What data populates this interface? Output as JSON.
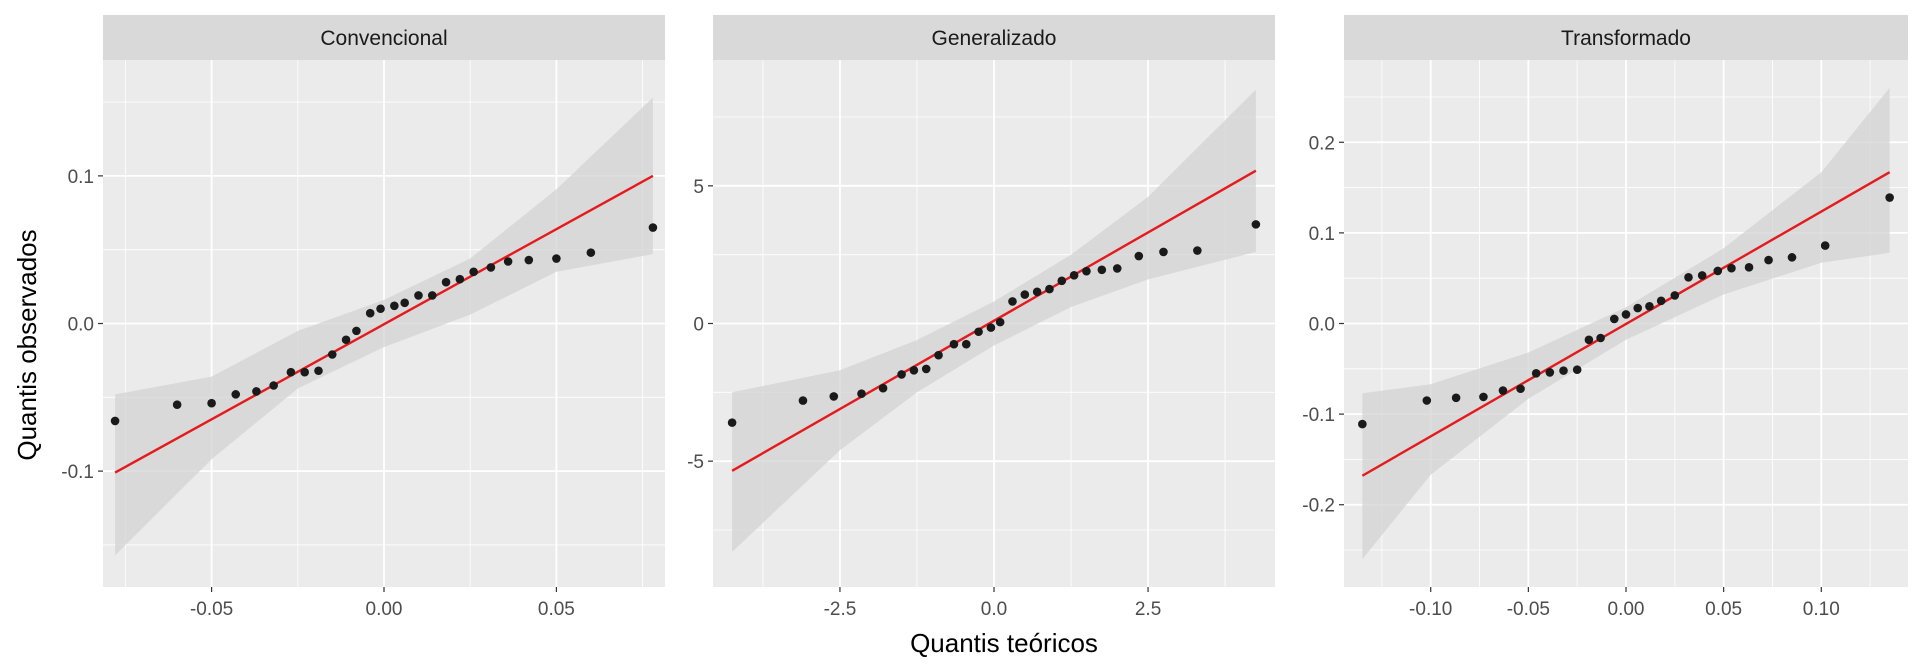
{
  "figure": {
    "xlabel": "Quantis teóricos",
    "ylabel": "Quantis observados"
  },
  "colors": {
    "panel_background": "#ebebeb",
    "strip_background": "#d9d9d9",
    "grid": "#ffffff",
    "band": "#d3d3d3",
    "line": "#e41a1c",
    "points": "#1a1a1a"
  },
  "chart_data": [
    {
      "type": "scatter",
      "title": "Convencional",
      "xlim": [
        -0.0815,
        0.0815
      ],
      "ylim": [
        -0.1785,
        0.1785
      ],
      "xticks": [
        -0.05,
        0.0,
        0.05
      ],
      "xtick_labels": [
        "-0.05",
        "0.00",
        "0.05"
      ],
      "xminor": [
        -0.075,
        -0.025,
        0.025,
        0.075
      ],
      "yticks": [
        -0.1,
        0.0,
        0.1
      ],
      "ytick_labels": [
        "-0.1",
        "0.0",
        "0.1"
      ],
      "yminor": [
        -0.15,
        -0.05,
        0.05,
        0.15
      ],
      "points": [
        {
          "x": -0.078,
          "y": -0.066
        },
        {
          "x": -0.06,
          "y": -0.055
        },
        {
          "x": -0.05,
          "y": -0.054
        },
        {
          "x": -0.043,
          "y": -0.048
        },
        {
          "x": -0.037,
          "y": -0.046
        },
        {
          "x": -0.032,
          "y": -0.042
        },
        {
          "x": -0.027,
          "y": -0.033
        },
        {
          "x": -0.023,
          "y": -0.033
        },
        {
          "x": -0.019,
          "y": -0.032
        },
        {
          "x": -0.015,
          "y": -0.021
        },
        {
          "x": -0.011,
          "y": -0.011
        },
        {
          "x": -0.008,
          "y": -0.005
        },
        {
          "x": -0.004,
          "y": 0.007
        },
        {
          "x": -0.001,
          "y": 0.01
        },
        {
          "x": 0.003,
          "y": 0.012
        },
        {
          "x": 0.006,
          "y": 0.014
        },
        {
          "x": 0.01,
          "y": 0.019
        },
        {
          "x": 0.014,
          "y": 0.019
        },
        {
          "x": 0.018,
          "y": 0.028
        },
        {
          "x": 0.022,
          "y": 0.03
        },
        {
          "x": 0.026,
          "y": 0.035
        },
        {
          "x": 0.031,
          "y": 0.038
        },
        {
          "x": 0.036,
          "y": 0.042
        },
        {
          "x": 0.042,
          "y": 0.043
        },
        {
          "x": 0.05,
          "y": 0.044
        },
        {
          "x": 0.06,
          "y": 0.048
        },
        {
          "x": 0.078,
          "y": 0.065
        }
      ],
      "reference_line": [
        {
          "x": -0.078,
          "y": -0.101
        },
        {
          "x": 0.078,
          "y": 0.1
        }
      ],
      "band_upper": [
        {
          "x": -0.078,
          "y": -0.048
        },
        {
          "x": -0.05,
          "y": -0.036
        },
        {
          "x": -0.025,
          "y": -0.005
        },
        {
          "x": 0.0,
          "y": 0.016
        },
        {
          "x": 0.025,
          "y": 0.044
        },
        {
          "x": 0.05,
          "y": 0.091
        },
        {
          "x": 0.078,
          "y": 0.153
        }
      ],
      "band_lower": [
        {
          "x": -0.078,
          "y": -0.157
        },
        {
          "x": -0.05,
          "y": -0.092
        },
        {
          "x": -0.025,
          "y": -0.044
        },
        {
          "x": 0.0,
          "y": -0.016
        },
        {
          "x": 0.025,
          "y": 0.006
        },
        {
          "x": 0.05,
          "y": 0.035
        },
        {
          "x": 0.078,
          "y": 0.047
        }
      ]
    },
    {
      "type": "scatter",
      "title": "Generalizado",
      "xlim": [
        -4.56,
        4.56
      ],
      "ylim": [
        -9.57,
        9.57
      ],
      "xticks": [
        -2.5,
        0.0,
        2.5
      ],
      "xtick_labels": [
        "-2.5",
        "0.0",
        "2.5"
      ],
      "xminor": [
        -3.75,
        -1.25,
        1.25,
        3.75
      ],
      "yticks": [
        -5,
        0,
        5
      ],
      "ytick_labels": [
        "-5",
        "0",
        "5"
      ],
      "yminor": [
        -7.5,
        -2.5,
        2.5,
        7.5
      ],
      "points": [
        {
          "x": -4.25,
          "y": -3.6
        },
        {
          "x": -3.1,
          "y": -2.8
        },
        {
          "x": -2.6,
          "y": -2.65
        },
        {
          "x": -2.15,
          "y": -2.55
        },
        {
          "x": -1.8,
          "y": -2.35
        },
        {
          "x": -1.5,
          "y": -1.85
        },
        {
          "x": -1.3,
          "y": -1.7
        },
        {
          "x": -1.1,
          "y": -1.65
        },
        {
          "x": -0.9,
          "y": -1.15
        },
        {
          "x": -0.65,
          "y": -0.75
        },
        {
          "x": -0.45,
          "y": -0.75
        },
        {
          "x": -0.25,
          "y": -0.3
        },
        {
          "x": -0.05,
          "y": -0.15
        },
        {
          "x": 0.1,
          "y": 0.05
        },
        {
          "x": 0.3,
          "y": 0.8
        },
        {
          "x": 0.5,
          "y": 1.05
        },
        {
          "x": 0.7,
          "y": 1.15
        },
        {
          "x": 0.9,
          "y": 1.25
        },
        {
          "x": 1.1,
          "y": 1.55
        },
        {
          "x": 1.3,
          "y": 1.75
        },
        {
          "x": 1.5,
          "y": 1.9
        },
        {
          "x": 1.75,
          "y": 1.95
        },
        {
          "x": 2.0,
          "y": 2.0
        },
        {
          "x": 2.35,
          "y": 2.45
        },
        {
          "x": 2.75,
          "y": 2.6
        },
        {
          "x": 3.3,
          "y": 2.65
        },
        {
          "x": 4.25,
          "y": 3.6
        }
      ],
      "reference_line": [
        {
          "x": -4.25,
          "y": -5.35
        },
        {
          "x": 4.25,
          "y": 5.55
        }
      ],
      "band_upper": [
        {
          "x": -4.25,
          "y": -2.5
        },
        {
          "x": -2.5,
          "y": -1.7
        },
        {
          "x": -1.25,
          "y": -0.6
        },
        {
          "x": 0.0,
          "y": 0.8
        },
        {
          "x": 1.25,
          "y": 2.5
        },
        {
          "x": 2.5,
          "y": 4.6
        },
        {
          "x": 4.25,
          "y": 8.5
        }
      ],
      "band_lower": [
        {
          "x": -4.25,
          "y": -8.3
        },
        {
          "x": -2.5,
          "y": -4.6
        },
        {
          "x": -1.25,
          "y": -2.5
        },
        {
          "x": 0.0,
          "y": -0.8
        },
        {
          "x": 1.25,
          "y": 0.6
        },
        {
          "x": 2.5,
          "y": 1.6
        },
        {
          "x": 4.25,
          "y": 2.6
        }
      ]
    },
    {
      "type": "scatter",
      "title": "Transformado",
      "xlim": [
        -0.1444,
        0.1444
      ],
      "ylim": [
        -0.2908,
        0.2908
      ],
      "xticks": [
        -0.1,
        -0.05,
        0.0,
        0.05,
        0.1
      ],
      "xtick_labels": [
        "-0.10",
        "-0.05",
        "0.00",
        "0.05",
        "0.10"
      ],
      "xminor": [
        -0.125,
        -0.075,
        -0.025,
        0.025,
        0.075,
        0.125
      ],
      "yticks": [
        -0.2,
        -0.1,
        0.0,
        0.1,
        0.2
      ],
      "ytick_labels": [
        "-0.2",
        "-0.1",
        "0.0",
        "0.1",
        "0.2"
      ],
      "yminor": [
        -0.25,
        -0.15,
        -0.05,
        0.05,
        0.15,
        0.25
      ],
      "points": [
        {
          "x": -0.135,
          "y": -0.111
        },
        {
          "x": -0.102,
          "y": -0.085
        },
        {
          "x": -0.087,
          "y": -0.082
        },
        {
          "x": -0.073,
          "y": -0.081
        },
        {
          "x": -0.063,
          "y": -0.074
        },
        {
          "x": -0.054,
          "y": -0.072
        },
        {
          "x": -0.046,
          "y": -0.055
        },
        {
          "x": -0.039,
          "y": -0.054
        },
        {
          "x": -0.032,
          "y": -0.052
        },
        {
          "x": -0.025,
          "y": -0.051
        },
        {
          "x": -0.019,
          "y": -0.018
        },
        {
          "x": -0.013,
          "y": -0.016
        },
        {
          "x": -0.006,
          "y": 0.005
        },
        {
          "x": 0.0,
          "y": 0.01
        },
        {
          "x": 0.006,
          "y": 0.017
        },
        {
          "x": 0.012,
          "y": 0.019
        },
        {
          "x": 0.018,
          "y": 0.025
        },
        {
          "x": 0.025,
          "y": 0.031
        },
        {
          "x": 0.032,
          "y": 0.051
        },
        {
          "x": 0.039,
          "y": 0.053
        },
        {
          "x": 0.047,
          "y": 0.058
        },
        {
          "x": 0.054,
          "y": 0.061
        },
        {
          "x": 0.063,
          "y": 0.062
        },
        {
          "x": 0.073,
          "y": 0.07
        },
        {
          "x": 0.085,
          "y": 0.073
        },
        {
          "x": 0.102,
          "y": 0.086
        },
        {
          "x": 0.135,
          "y": 0.139
        }
      ],
      "reference_line": [
        {
          "x": -0.135,
          "y": -0.168
        },
        {
          "x": 0.135,
          "y": 0.167
        }
      ],
      "band_upper": [
        {
          "x": -0.135,
          "y": -0.077
        },
        {
          "x": -0.1,
          "y": -0.067
        },
        {
          "x": -0.05,
          "y": -0.032
        },
        {
          "x": 0.0,
          "y": 0.018
        },
        {
          "x": 0.05,
          "y": 0.083
        },
        {
          "x": 0.1,
          "y": 0.167
        },
        {
          "x": 0.135,
          "y": 0.26
        }
      ],
      "band_lower": [
        {
          "x": -0.135,
          "y": -0.26
        },
        {
          "x": -0.1,
          "y": -0.167
        },
        {
          "x": -0.05,
          "y": -0.083
        },
        {
          "x": 0.0,
          "y": -0.018
        },
        {
          "x": 0.05,
          "y": 0.032
        },
        {
          "x": 0.1,
          "y": 0.067
        },
        {
          "x": 0.135,
          "y": 0.078
        }
      ]
    }
  ]
}
